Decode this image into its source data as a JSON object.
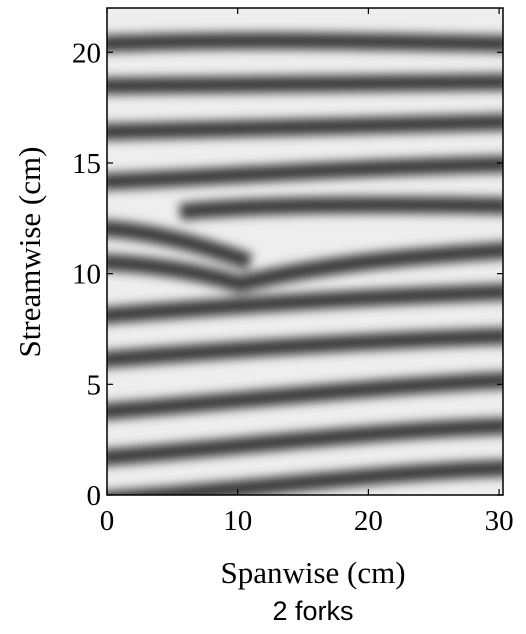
{
  "chart_data": {
    "type": "image",
    "xlabel": "Spanwise (cm)",
    "ylabel": "Streamwise (cm)",
    "caption": "2 forks",
    "xlim": [
      0,
      30.3
    ],
    "ylim": [
      0,
      22
    ],
    "xticks": [
      0,
      10,
      20,
      30
    ],
    "yticks": [
      0,
      5,
      10,
      15,
      20
    ]
  }
}
